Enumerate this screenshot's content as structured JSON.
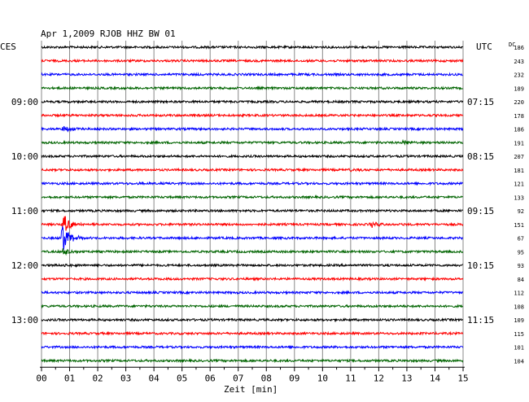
{
  "chart_data": {
    "type": "line",
    "title": "Apr 1,2009   RJOB HHZ BW 01",
    "left_timezone": "CES",
    "right_timezone": "UTC",
    "right_header": "DC",
    "xlabel": "Zeit [min]",
    "x_ticks": [
      "00",
      "01",
      "02",
      "03",
      "04",
      "05",
      "06",
      "07",
      "08",
      "09",
      "10",
      "11",
      "12",
      "13",
      "14",
      "15"
    ],
    "xlim": [
      0,
      15
    ],
    "grid": true,
    "trace_colors": [
      "#000000",
      "#ff0000",
      "#0000ff",
      "#006400"
    ],
    "left_hour_labels": [
      {
        "trace": 4,
        "text": "09:00"
      },
      {
        "trace": 8,
        "text": "10:00"
      },
      {
        "trace": 12,
        "text": "11:00"
      },
      {
        "trace": 16,
        "text": "12:00"
      },
      {
        "trace": 20,
        "text": "13:00"
      }
    ],
    "right_hour_labels": [
      {
        "trace": 4,
        "text": "07:15"
      },
      {
        "trace": 8,
        "text": "08:15"
      },
      {
        "trace": 12,
        "text": "09:15"
      },
      {
        "trace": 16,
        "text": "10:15"
      },
      {
        "trace": 20,
        "text": "11:15"
      }
    ],
    "dc_offsets": [
      "186",
      "243",
      "232",
      "189",
      "220",
      "178",
      "186",
      "191",
      "207",
      "181",
      "121",
      "133",
      "92",
      "151",
      "67",
      "95",
      "93",
      "84",
      "112",
      "108",
      "109",
      "115",
      "101",
      "104"
    ],
    "events": [
      {
        "trace": 6,
        "minute": 0.8,
        "amplitude": 4
      },
      {
        "trace": 7,
        "minute": 12.9,
        "amplitude": 3
      },
      {
        "trace": 9,
        "minute": 11.0,
        "amplitude": 2
      },
      {
        "trace": 10,
        "minute": 3.5,
        "amplitude": 2
      },
      {
        "trace": 13,
        "minute": 11.7,
        "amplitude": 4
      },
      {
        "trace": 13,
        "minute": 0.8,
        "amplitude": 12
      },
      {
        "trace": 14,
        "minute": 0.75,
        "amplitude": 20
      },
      {
        "trace": 15,
        "minute": 0.8,
        "amplitude": 6
      },
      {
        "trace": 16,
        "minute": 0.8,
        "amplitude": 3
      }
    ]
  }
}
